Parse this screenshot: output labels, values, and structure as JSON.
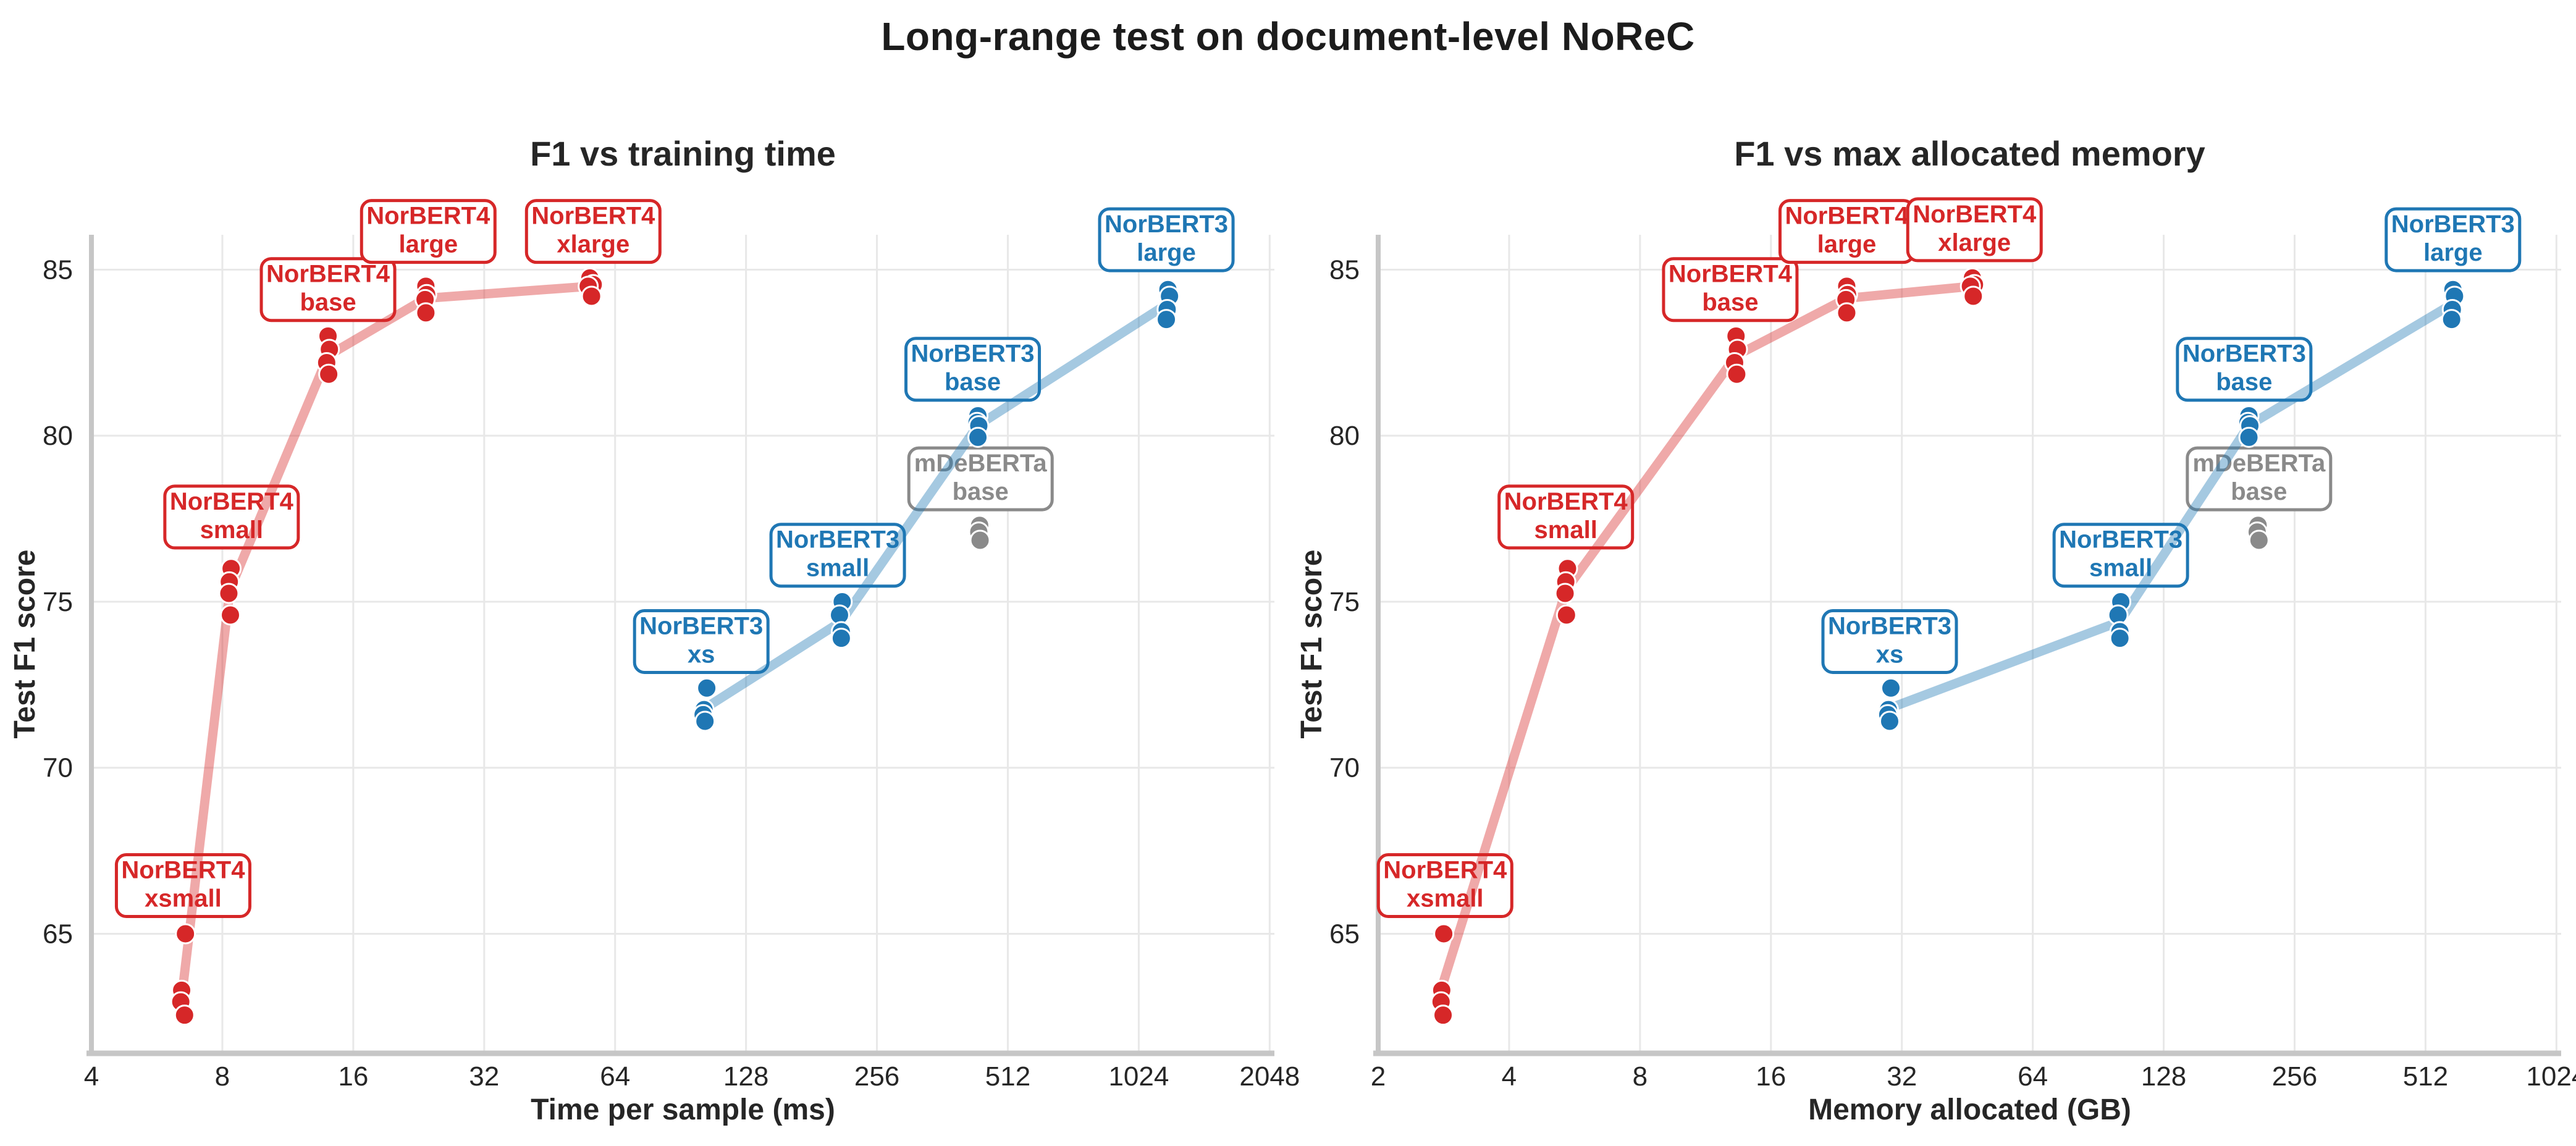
{
  "figure": {
    "title": "Long-range test on document-level NoReC",
    "background": "#ffffff",
    "text_color": "#262626",
    "grid_color": "#e8e8e8",
    "spine_color": "#c6c6c6"
  },
  "chart_data": [
    {
      "type": "scatter",
      "title": "F1 vs training time",
      "xlabel": "Time per sample (ms)",
      "ylabel": "Test F1 score",
      "x_scale": "log2",
      "grid": true,
      "legend_position": "none",
      "xlim": [
        4,
        2100
      ],
      "ylim": [
        61.4,
        86.05
      ],
      "x_ticks": [
        4,
        8,
        16,
        32,
        64,
        128,
        256,
        512,
        1024,
        2048
      ],
      "y_ticks": [
        65,
        70,
        75,
        80,
        85
      ],
      "series": [
        {
          "name": "NorBERT4",
          "color": "#d62728",
          "trend": true,
          "models": [
            {
              "name": "NorBERT4 xsmall",
              "label": [
                "NorBERT4",
                "xsmall"
              ],
              "label_at": [
                6.5,
                66.45
              ],
              "points": [
                [
                  6.58,
                  65.0
                ],
                [
                  6.45,
                  63.3
                ],
                [
                  6.42,
                  62.95
                ],
                [
                  6.55,
                  62.55
                ]
              ]
            },
            {
              "name": "NorBERT4 small",
              "label": [
                "NorBERT4",
                "small"
              ],
              "label_at": [
                8.4,
                77.55
              ],
              "points": [
                [
                  8.38,
                  76.0
                ],
                [
                  8.3,
                  75.6
                ],
                [
                  8.28,
                  75.25
                ],
                [
                  8.35,
                  74.6
                ]
              ]
            },
            {
              "name": "NorBERT4 base",
              "label": [
                "NorBERT4",
                "base"
              ],
              "label_at": [
                14,
                84.4
              ],
              "points": [
                [
                  14.0,
                  83.0
                ],
                [
                  14.1,
                  82.6
                ],
                [
                  13.9,
                  82.2
                ],
                [
                  14.05,
                  81.85
                ]
              ]
            },
            {
              "name": "NorBERT4 large",
              "label": [
                "NorBERT4",
                "large"
              ],
              "label_at": [
                23.8,
                86.15
              ],
              "points": [
                [
                  23.5,
                  84.5
                ],
                [
                  23.6,
                  84.25
                ],
                [
                  23.4,
                  84.1
                ],
                [
                  23.5,
                  83.7
                ]
              ]
            },
            {
              "name": "NorBERT4 xlarge",
              "label": [
                "NorBERT4",
                "xlarge"
              ],
              "label_at": [
                57,
                86.15
              ],
              "points": [
                [
                  56,
                  84.75
                ],
                [
                  57,
                  84.55
                ],
                [
                  55.5,
                  84.5
                ],
                [
                  56.5,
                  84.2
                ]
              ]
            }
          ]
        },
        {
          "name": "NorBERT3",
          "color": "#1f77b4",
          "trend": true,
          "models": [
            {
              "name": "NorBERT3 xs",
              "label": [
                "NorBERT3",
                "xs"
              ],
              "label_at": [
                101,
                73.8
              ],
              "points": [
                [
                  104,
                  72.4
                ],
                [
                  102.5,
                  71.75
                ],
                [
                  102,
                  71.6
                ],
                [
                  103,
                  71.4
                ]
              ]
            },
            {
              "name": "NorBERT3 small",
              "label": [
                "NorBERT3",
                "small"
              ],
              "label_at": [
                208,
                76.4
              ],
              "points": [
                [
                  213,
                  75.0
                ],
                [
                  210,
                  74.6
                ],
                [
                  212,
                  74.1
                ],
                [
                  212,
                  73.9
                ]
              ]
            },
            {
              "name": "NorBERT3 base",
              "label": [
                "NorBERT3",
                "base"
              ],
              "label_at": [
                425,
                82.0
              ],
              "points": [
                [
                  437,
                  80.6
                ],
                [
                  435,
                  80.4
                ],
                [
                  439,
                  80.3
                ],
                [
                  437,
                  79.95
                ]
              ]
            },
            {
              "name": "NorBERT3 large",
              "label": [
                "NorBERT3",
                "large"
              ],
              "label_at": [
                1185,
                85.9
              ],
              "points": [
                [
                  1195,
                  84.4
                ],
                [
                  1205,
                  84.2
                ],
                [
                  1190,
                  83.8
                ],
                [
                  1185,
                  83.5
                ]
              ]
            }
          ]
        },
        {
          "name": "mDeBERTa",
          "color": "#8a8a8a",
          "trend": false,
          "models": [
            {
              "name": "mDeBERTa base",
              "label": [
                "mDeBERTa",
                "base"
              ],
              "label_w": 232,
              "label_at": [
                443,
                78.7
              ],
              "points": [
                [
                  441,
                  77.3
                ],
                [
                  439,
                  77.1
                ],
                [
                  442,
                  76.85
                ]
              ]
            }
          ]
        }
      ]
    },
    {
      "type": "scatter",
      "title": "F1 vs max allocated memory",
      "xlabel": "Memory allocated (GB)",
      "ylabel": "Test F1 score",
      "x_scale": "log2",
      "grid": true,
      "legend_position": "none",
      "xlim": [
        2,
        1050
      ],
      "ylim": [
        61.4,
        86.05
      ],
      "x_ticks": [
        2,
        4,
        8,
        16,
        32,
        64,
        128,
        256,
        512,
        1024
      ],
      "y_ticks": [
        65,
        70,
        75,
        80,
        85
      ],
      "series": [
        {
          "name": "NorBERT4",
          "color": "#d62728",
          "trend": true,
          "models": [
            {
              "name": "NorBERT4 xsmall",
              "label": [
                "NorBERT4",
                "xsmall"
              ],
              "label_at": [
                2.85,
                66.45
              ],
              "points": [
                [
                  2.83,
                  65.0
                ],
                [
                  2.8,
                  63.3
                ],
                [
                  2.79,
                  62.95
                ],
                [
                  2.82,
                  62.55
                ]
              ]
            },
            {
              "name": "NorBERT4 small",
              "label": [
                "NorBERT4",
                "small"
              ],
              "label_at": [
                5.4,
                77.55
              ],
              "points": [
                [
                  5.45,
                  76.0
                ],
                [
                  5.4,
                  75.6
                ],
                [
                  5.38,
                  75.25
                ],
                [
                  5.42,
                  74.6
                ]
              ]
            },
            {
              "name": "NorBERT4 base",
              "label": [
                "NorBERT4",
                "base"
              ],
              "label_at": [
                12.9,
                84.4
              ],
              "points": [
                [
                  13.3,
                  83.0
                ],
                [
                  13.4,
                  82.6
                ],
                [
                  13.2,
                  82.2
                ],
                [
                  13.35,
                  81.85
                ]
              ]
            },
            {
              "name": "NorBERT4 large",
              "label": [
                "NorBERT4",
                "large"
              ],
              "label_at": [
                23.9,
                86.15
              ],
              "points": [
                [
                  23.9,
                  84.5
                ],
                [
                  24.0,
                  84.25
                ],
                [
                  23.8,
                  84.1
                ],
                [
                  23.9,
                  83.7
                ]
              ]
            },
            {
              "name": "NorBERT4 xlarge",
              "label": [
                "NorBERT4",
                "xlarge"
              ],
              "label_at": [
                47,
                86.2
              ],
              "points": [
                [
                  46.5,
                  84.75
                ],
                [
                  47.0,
                  84.55
                ],
                [
                  46.0,
                  84.5
                ],
                [
                  46.7,
                  84.2
                ]
              ]
            }
          ]
        },
        {
          "name": "NorBERT3",
          "color": "#1f77b4",
          "trend": true,
          "models": [
            {
              "name": "NorBERT3 xs",
              "label": [
                "NorBERT3",
                "xs"
              ],
              "label_at": [
                30,
                73.8
              ],
              "points": [
                [
                  30.2,
                  72.4
                ],
                [
                  29.8,
                  71.75
                ],
                [
                  29.7,
                  71.6
                ],
                [
                  30.0,
                  71.4
                ]
              ]
            },
            {
              "name": "NorBERT3 small",
              "label": [
                "NorBERT3",
                "small"
              ],
              "label_at": [
                102,
                76.4
              ],
              "points": [
                [
                  102,
                  75.0
                ],
                [
                  100.5,
                  74.6
                ],
                [
                  101.5,
                  74.1
                ],
                [
                  101.5,
                  73.9
                ]
              ]
            },
            {
              "name": "NorBERT3 base",
              "label": [
                "NorBERT3",
                "base"
              ],
              "label_at": [
                196,
                82.0
              ],
              "points": [
                [
                  201,
                  80.6
                ],
                [
                  200,
                  80.4
                ],
                [
                  202,
                  80.3
                ],
                [
                  201,
                  79.95
                ]
              ]
            },
            {
              "name": "NorBERT3 large",
              "label": [
                "NorBERT3",
                "large"
              ],
              "label_at": [
                592,
                85.9
              ],
              "points": [
                [
                  592,
                  84.4
                ],
                [
                  597,
                  84.2
                ],
                [
                  590,
                  83.8
                ],
                [
                  588,
                  83.5
                ]
              ]
            }
          ]
        },
        {
          "name": "mDeBERTa",
          "color": "#8a8a8a",
          "trend": false,
          "models": [
            {
              "name": "mDeBERTa base",
              "label": [
                "mDeBERTa",
                "base"
              ],
              "label_w": 232,
              "label_at": [
                212,
                78.7
              ],
              "points": [
                [
                  211,
                  77.3
                ],
                [
                  210,
                  77.1
                ],
                [
                  212,
                  76.85
                ]
              ]
            }
          ]
        }
      ]
    }
  ]
}
